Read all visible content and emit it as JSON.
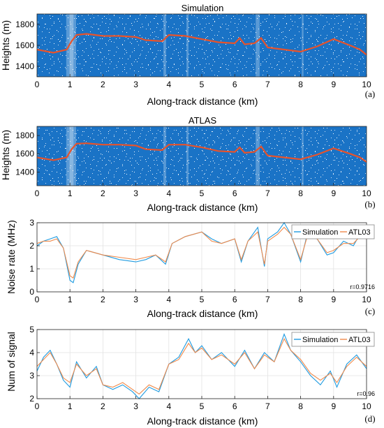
{
  "chart_data": [
    {
      "panel": "(a)",
      "type": "scatter",
      "title": "Simulation",
      "xlabel": "Along-track distance (km)",
      "ylabel": "Heights (m)",
      "xlim": [
        0,
        10
      ],
      "ylim": [
        1300,
        1900
      ],
      "xticks": [
        "0",
        "1",
        "2",
        "3",
        "4",
        "5",
        "6",
        "7",
        "8",
        "9",
        "10"
      ],
      "yticks": [
        "1400",
        "1600",
        "1800"
      ],
      "background_color": "#1a73c6",
      "noise_color": "#ffffff",
      "signal_color": "#e8532b",
      "signal_line": {
        "x": [
          0,
          0.5,
          0.9,
          1.05,
          1.2,
          1.5,
          2.0,
          2.5,
          3.0,
          3.3,
          3.8,
          4.0,
          4.5,
          5.0,
          5.5,
          6.0,
          6.15,
          6.3,
          6.6,
          6.8,
          7.0,
          7.5,
          8.0,
          8.5,
          9.0,
          9.5,
          9.8,
          10.0
        ],
        "y": [
          1560,
          1530,
          1560,
          1640,
          1700,
          1710,
          1690,
          1690,
          1680,
          1650,
          1640,
          1700,
          1690,
          1660,
          1630,
          1620,
          1670,
          1610,
          1620,
          1670,
          1580,
          1560,
          1540,
          1590,
          1660,
          1600,
          1560,
          1510
        ]
      }
    },
    {
      "panel": "(b)",
      "type": "scatter",
      "title": "ATLAS",
      "xlabel": "Along-track distance (km)",
      "ylabel": "Heights (m)",
      "xlim": [
        0,
        10
      ],
      "ylim": [
        1250,
        1900
      ],
      "xticks": [
        "0",
        "1",
        "2",
        "3",
        "4",
        "5",
        "6",
        "7",
        "8",
        "9",
        "10"
      ],
      "yticks": [
        "1400",
        "1600",
        "1800"
      ],
      "background_color": "#1a73c6",
      "noise_color": "#ffffff",
      "signal_color": "#e8532b",
      "signal_line": {
        "x": [
          0,
          0.5,
          0.9,
          1.05,
          1.2,
          1.5,
          2.0,
          2.5,
          3.0,
          3.3,
          3.8,
          4.0,
          4.5,
          5.0,
          5.5,
          6.0,
          6.15,
          6.3,
          6.6,
          6.8,
          7.0,
          7.5,
          8.0,
          8.5,
          9.0,
          9.5,
          9.8,
          10.0
        ],
        "y": [
          1560,
          1530,
          1560,
          1650,
          1710,
          1715,
          1700,
          1700,
          1690,
          1650,
          1640,
          1700,
          1700,
          1670,
          1630,
          1620,
          1670,
          1610,
          1620,
          1680,
          1580,
          1560,
          1540,
          1590,
          1660,
          1600,
          1560,
          1510
        ]
      }
    },
    {
      "panel": "(c)",
      "type": "line",
      "xlabel": "Along-track distance (km)",
      "ylabel": "Noise rate (MHz)",
      "xlim": [
        0,
        10
      ],
      "ylim": [
        0,
        3
      ],
      "xticks": [
        "0",
        "1",
        "2",
        "3",
        "4",
        "5",
        "6",
        "7",
        "8",
        "9",
        "10"
      ],
      "yticks": [
        "0",
        "1",
        "2",
        "3"
      ],
      "grid": true,
      "legend": "top-right",
      "annotation": "r=0.9716",
      "series": [
        {
          "name": "Simulation",
          "color": "#1f9be0",
          "x": [
            0,
            0.2,
            0.4,
            0.6,
            0.8,
            1.0,
            1.1,
            1.25,
            1.5,
            2.0,
            2.5,
            3.0,
            3.3,
            3.6,
            3.9,
            4.1,
            4.5,
            5.0,
            5.3,
            5.6,
            6.0,
            6.2,
            6.4,
            6.7,
            6.9,
            7.0,
            7.3,
            7.5,
            7.7,
            8.0,
            8.2,
            8.5,
            8.8,
            9.0,
            9.3,
            9.6,
            9.8,
            10.0
          ],
          "y": [
            2.0,
            2.2,
            2.3,
            2.4,
            1.9,
            0.5,
            0.4,
            1.2,
            1.8,
            1.6,
            1.4,
            1.3,
            1.4,
            1.6,
            1.2,
            2.1,
            2.4,
            2.6,
            2.3,
            2.1,
            2.3,
            1.3,
            2.2,
            2.8,
            1.1,
            2.3,
            2.6,
            3.0,
            2.5,
            1.3,
            2.5,
            2.3,
            1.6,
            1.7,
            2.2,
            2.0,
            2.5,
            2.3
          ]
        },
        {
          "name": "ATL03",
          "color": "#f08a4b",
          "x": [
            0,
            0.2,
            0.4,
            0.6,
            0.8,
            1.0,
            1.1,
            1.25,
            1.5,
            2.0,
            2.5,
            3.0,
            3.3,
            3.6,
            3.9,
            4.1,
            4.5,
            5.0,
            5.3,
            5.6,
            6.0,
            6.2,
            6.4,
            6.7,
            6.9,
            7.0,
            7.3,
            7.5,
            7.7,
            8.0,
            8.2,
            8.5,
            8.8,
            9.0,
            9.3,
            9.6,
            9.8,
            10.0
          ],
          "y": [
            2.1,
            2.2,
            2.2,
            2.3,
            1.9,
            0.7,
            0.6,
            1.3,
            1.8,
            1.6,
            1.5,
            1.4,
            1.5,
            1.6,
            1.3,
            2.1,
            2.4,
            2.6,
            2.2,
            2.1,
            2.3,
            1.4,
            2.2,
            2.6,
            1.2,
            2.2,
            2.5,
            2.8,
            2.5,
            1.4,
            2.4,
            2.3,
            1.7,
            1.8,
            2.1,
            2.1,
            2.4,
            2.3
          ]
        }
      ]
    },
    {
      "panel": "(d)",
      "type": "line",
      "xlabel": "Along-track distance (km)",
      "ylabel": "Num of signal",
      "xlim": [
        0,
        10
      ],
      "ylim": [
        2,
        5
      ],
      "xticks": [
        "0",
        "1",
        "2",
        "3",
        "4",
        "5",
        "6",
        "7",
        "8",
        "9",
        "10"
      ],
      "yticks": [
        "2",
        "3",
        "4",
        "5"
      ],
      "grid": true,
      "legend": "top-right",
      "annotation": "r=0.96",
      "series": [
        {
          "name": "Simulation",
          "color": "#1f9be0",
          "x": [
            0,
            0.2,
            0.4,
            0.6,
            0.8,
            1.0,
            1.2,
            1.5,
            1.8,
            2.0,
            2.3,
            2.6,
            2.9,
            3.1,
            3.4,
            3.7,
            4.0,
            4.3,
            4.6,
            4.8,
            5.0,
            5.3,
            5.6,
            6.0,
            6.3,
            6.6,
            6.9,
            7.2,
            7.5,
            7.7,
            8.0,
            8.3,
            8.6,
            8.9,
            9.1,
            9.4,
            9.7,
            10.0
          ],
          "y": [
            3.2,
            3.8,
            4.1,
            3.5,
            2.8,
            2.5,
            3.6,
            2.9,
            3.4,
            2.6,
            2.4,
            2.6,
            2.3,
            2.0,
            2.5,
            2.3,
            3.5,
            3.8,
            4.6,
            4.0,
            4.3,
            3.7,
            4.0,
            3.4,
            4.1,
            3.3,
            4.0,
            3.6,
            4.8,
            4.1,
            3.6,
            3.0,
            2.6,
            3.2,
            2.5,
            3.5,
            3.9,
            3.3
          ]
        },
        {
          "name": "ATL03",
          "color": "#f08a4b",
          "x": [
            0,
            0.2,
            0.4,
            0.6,
            0.8,
            1.0,
            1.2,
            1.5,
            1.8,
            2.0,
            2.3,
            2.6,
            2.9,
            3.1,
            3.4,
            3.7,
            4.0,
            4.3,
            4.6,
            4.8,
            5.0,
            5.3,
            5.6,
            6.0,
            6.3,
            6.6,
            6.9,
            7.2,
            7.5,
            7.7,
            8.0,
            8.3,
            8.6,
            8.9,
            9.1,
            9.4,
            9.7,
            10.0
          ],
          "y": [
            3.4,
            3.7,
            4.0,
            3.5,
            2.9,
            2.7,
            3.5,
            3.0,
            3.3,
            2.6,
            2.5,
            2.7,
            2.4,
            2.2,
            2.6,
            2.4,
            3.5,
            3.7,
            4.4,
            4.0,
            4.2,
            3.7,
            3.9,
            3.5,
            4.0,
            3.3,
            3.9,
            3.6,
            4.6,
            4.1,
            3.7,
            3.1,
            2.8,
            3.1,
            2.7,
            3.4,
            3.8,
            3.4
          ]
        }
      ]
    }
  ]
}
